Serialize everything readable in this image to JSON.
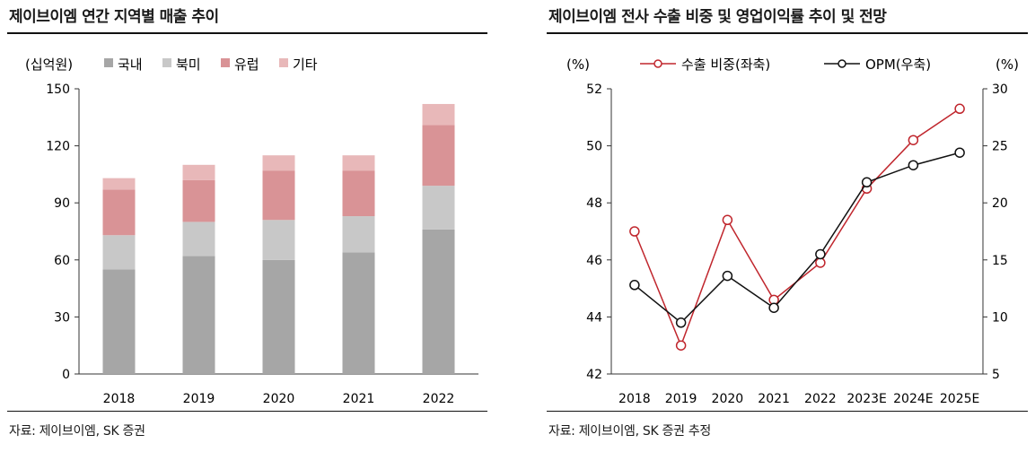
{
  "charts": {
    "left": {
      "title": "제이브이엠 연간 지역별 매출 추이",
      "source": "자료: 제이브이엠, SK 증권"
    },
    "right": {
      "title": "제이브이엠 전사 수출 비중 및 영업이익률 추이 및 전망",
      "source": "자료: 제이브이엠, SK 증권 추정"
    }
  },
  "chart_data": [
    {
      "type": "bar",
      "stacked": true,
      "title": "제이브이엠 연간 지역별 매출 추이",
      "unit_label": "(십억원)",
      "categories": [
        "2018",
        "2019",
        "2020",
        "2021",
        "2022"
      ],
      "series": [
        {
          "name": "국내",
          "color": "#a6a6a6",
          "values": [
            55,
            62,
            60,
            64,
            76
          ]
        },
        {
          "name": "북미",
          "color": "#c8c8c8",
          "values": [
            18,
            18,
            21,
            19,
            23
          ]
        },
        {
          "name": "유럽",
          "color": "#d99396",
          "values": [
            24,
            22,
            26,
            24,
            32
          ]
        },
        {
          "name": "기타",
          "color": "#e8b8b9",
          "values": [
            6,
            8,
            8,
            8,
            11
          ]
        }
      ],
      "ylim": [
        0,
        150
      ],
      "yticks": [
        0,
        30,
        60,
        90,
        120,
        150
      ],
      "legend": "top"
    },
    {
      "type": "line",
      "title": "제이브이엠 전사 수출 비중 및 영업이익률 추이 및 전망",
      "categories": [
        "2018",
        "2019",
        "2020",
        "2021",
        "2022",
        "2023E",
        "2024E",
        "2025E"
      ],
      "left_axis": {
        "label": "(%)",
        "ylim": [
          42,
          52
        ],
        "ticks": [
          42,
          44,
          46,
          48,
          50,
          52
        ]
      },
      "right_axis": {
        "label": "(%)",
        "ylim": [
          5,
          30
        ],
        "ticks": [
          5,
          10,
          15,
          20,
          25,
          30
        ]
      },
      "series": [
        {
          "name": "수출 비중(좌축)",
          "axis": "left",
          "color": "#c0262d",
          "marker": "circle-open",
          "values": [
            47.0,
            43.0,
            47.4,
            44.6,
            45.9,
            48.5,
            50.2,
            51.3
          ]
        },
        {
          "name": "OPM(우축)",
          "axis": "right",
          "color": "#111111",
          "marker": "circle-open",
          "values": [
            12.8,
            9.5,
            13.6,
            10.8,
            15.5,
            21.8,
            23.3,
            24.4
          ]
        }
      ],
      "legend": "top"
    }
  ]
}
